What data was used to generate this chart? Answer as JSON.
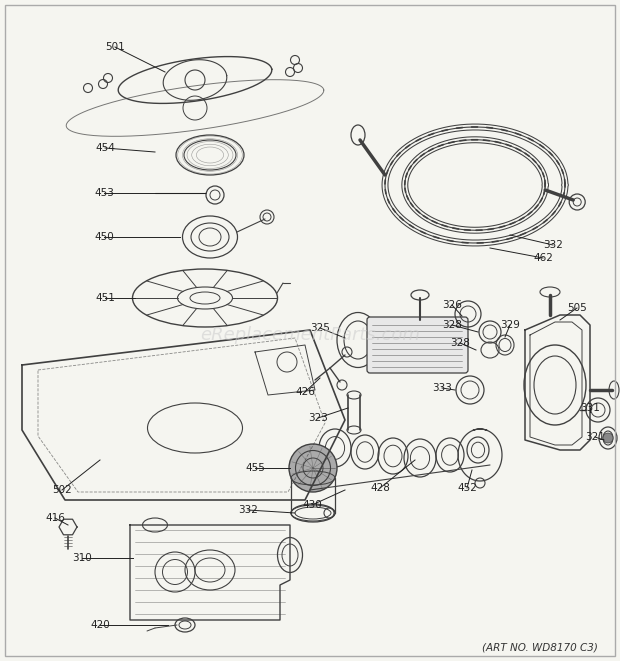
{
  "bg_color": "#f5f5f0",
  "line_color": "#404040",
  "text_color": "#222222",
  "watermark": "eReplacementParts.com",
  "art_no": "(ART NO. WD8170 C3)",
  "label_fontsize": 7.5,
  "figsize": [
    6.2,
    6.61
  ],
  "dpi": 100
}
